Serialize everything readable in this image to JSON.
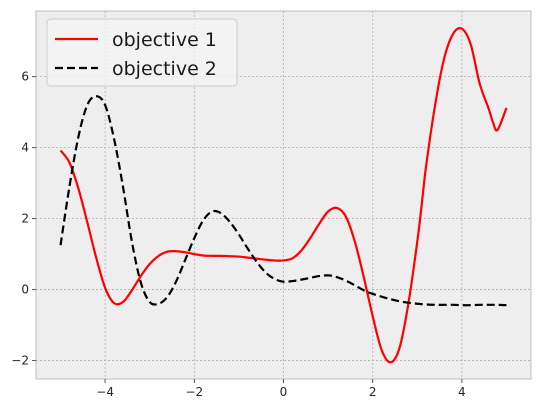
{
  "chart_data": {
    "type": "line",
    "title": "",
    "xlabel": "",
    "ylabel": "",
    "xlim": [
      -5.55,
      5.55
    ],
    "ylim": [
      -2.52,
      7.85
    ],
    "x_ticks": [
      -4,
      -2,
      0,
      2,
      4
    ],
    "y_ticks": [
      -2,
      0,
      2,
      4,
      6
    ],
    "grid": true,
    "legend_position": "top-left",
    "background_color": "#eeeeee",
    "grid_color": "#b0b0b0",
    "series": [
      {
        "name": "objective 1",
        "color": "#ff0000",
        "line_style": "solid",
        "x": [
          -5.0,
          -4.8,
          -4.6,
          -4.4,
          -4.2,
          -4.0,
          -3.8,
          -3.6,
          -3.4,
          -3.2,
          -3.0,
          -2.8,
          -2.6,
          -2.4,
          -2.2,
          -2.0,
          -1.8,
          -1.6,
          -1.4,
          -1.2,
          -1.0,
          -0.8,
          -0.6,
          -0.4,
          -0.2,
          0.0,
          0.2,
          0.4,
          0.6,
          0.8,
          1.0,
          1.2,
          1.4,
          1.6,
          1.8,
          2.0,
          2.2,
          2.4,
          2.6,
          2.8,
          3.0,
          3.1,
          3.2,
          3.4,
          3.6,
          3.8,
          4.0,
          4.2,
          4.4,
          4.6,
          4.7,
          4.8,
          5.0
        ],
        "y": [
          3.92,
          3.58,
          2.85,
          1.9,
          0.9,
          0.05,
          -0.38,
          -0.35,
          -0.02,
          0.38,
          0.72,
          0.95,
          1.07,
          1.08,
          1.05,
          1.0,
          0.96,
          0.95,
          0.95,
          0.94,
          0.93,
          0.9,
          0.87,
          0.84,
          0.82,
          0.82,
          0.88,
          1.1,
          1.45,
          1.85,
          2.2,
          2.3,
          2.05,
          1.35,
          0.35,
          -0.75,
          -1.7,
          -2.05,
          -1.65,
          -0.4,
          1.35,
          2.4,
          3.5,
          5.2,
          6.5,
          7.2,
          7.35,
          6.9,
          5.8,
          5.1,
          4.7,
          4.5,
          5.12
        ]
      },
      {
        "name": "objective 2",
        "color": "#000000",
        "line_style": "dashed",
        "x": [
          -5.0,
          -4.8,
          -4.6,
          -4.4,
          -4.2,
          -4.0,
          -3.8,
          -3.6,
          -3.4,
          -3.2,
          -3.0,
          -2.8,
          -2.6,
          -2.4,
          -2.2,
          -2.0,
          -1.8,
          -1.6,
          -1.4,
          -1.2,
          -1.0,
          -0.8,
          -0.6,
          -0.4,
          -0.2,
          0.0,
          0.2,
          0.4,
          0.6,
          0.8,
          1.0,
          1.2,
          1.4,
          1.6,
          1.8,
          2.0,
          2.2,
          2.4,
          2.6,
          2.8,
          3.0,
          3.2,
          3.4,
          3.6,
          3.8,
          4.0,
          4.2,
          4.4,
          4.6,
          4.8,
          5.0
        ],
        "y": [
          1.25,
          2.9,
          4.3,
          5.2,
          5.45,
          5.2,
          4.25,
          2.9,
          1.35,
          0.2,
          -0.35,
          -0.4,
          -0.2,
          0.25,
          0.85,
          1.45,
          1.95,
          2.2,
          2.15,
          1.9,
          1.55,
          1.15,
          0.78,
          0.48,
          0.3,
          0.22,
          0.24,
          0.28,
          0.33,
          0.38,
          0.4,
          0.35,
          0.25,
          0.12,
          -0.02,
          -0.12,
          -0.2,
          -0.27,
          -0.33,
          -0.37,
          -0.4,
          -0.42,
          -0.43,
          -0.43,
          -0.43,
          -0.44,
          -0.44,
          -0.43,
          -0.43,
          -0.43,
          -0.44
        ]
      }
    ]
  }
}
